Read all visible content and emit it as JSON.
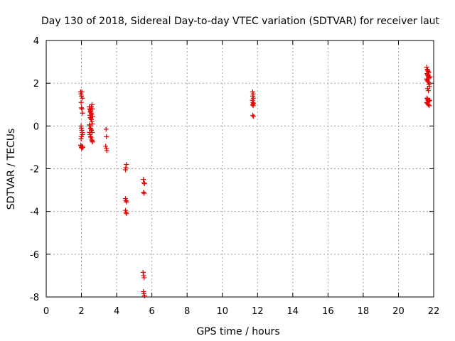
{
  "chart_data": {
    "type": "scatter",
    "title": "Day 130 of 2018, Sidereal Day-to-day VTEC variation (SDTVAR) for receiver laut",
    "xlabel": "GPS time / hours",
    "ylabel": "SDTVAR / TECUs",
    "xlim": [
      0,
      22
    ],
    "ylim": [
      -8,
      4
    ],
    "xticks": [
      0,
      2,
      4,
      6,
      8,
      10,
      12,
      14,
      16,
      18,
      20,
      22
    ],
    "yticks": [
      -8,
      -6,
      -4,
      -2,
      0,
      2,
      4
    ],
    "xtick_labels": [
      "0",
      "2",
      "4",
      "6",
      "8",
      "10",
      "12",
      "14",
      "16",
      "18",
      "20",
      "22"
    ],
    "ytick_labels": [
      "-8",
      "-6",
      "-4",
      "-2",
      "0",
      "2",
      "4"
    ],
    "grid": true,
    "marker": "+",
    "color": "#e00000",
    "series": [
      {
        "name": "SDTVAR",
        "points": [
          [
            1.95,
            1.6
          ],
          [
            1.97,
            1.5
          ],
          [
            2.0,
            1.4
          ],
          [
            2.02,
            1.6
          ],
          [
            2.05,
            1.3
          ],
          [
            1.98,
            1.1
          ],
          [
            2.0,
            0.85
          ],
          [
            2.03,
            0.8
          ],
          [
            2.06,
            0.6
          ],
          [
            1.98,
            0.0
          ],
          [
            2.0,
            -0.1
          ],
          [
            2.02,
            -0.2
          ],
          [
            2.04,
            -0.3
          ],
          [
            2.06,
            -0.4
          ],
          [
            2.0,
            -0.5
          ],
          [
            1.98,
            -0.6
          ],
          [
            1.96,
            -0.9
          ],
          [
            1.98,
            -0.95
          ],
          [
            2.0,
            -1.0
          ],
          [
            2.02,
            -1.05
          ],
          [
            2.05,
            -0.95
          ],
          [
            2.07,
            -1.0
          ],
          [
            2.45,
            0.9
          ],
          [
            2.47,
            0.8
          ],
          [
            2.5,
            0.75
          ],
          [
            2.52,
            0.7
          ],
          [
            2.55,
            0.6
          ],
          [
            2.58,
            0.55
          ],
          [
            2.6,
            1.0
          ],
          [
            2.62,
            0.8
          ],
          [
            2.48,
            0.5
          ],
          [
            2.5,
            0.4
          ],
          [
            2.53,
            0.35
          ],
          [
            2.56,
            0.3
          ],
          [
            2.59,
            0.2
          ],
          [
            2.62,
            0.1
          ],
          [
            2.45,
            0.05
          ],
          [
            2.48,
            0.0
          ],
          [
            2.51,
            -0.1
          ],
          [
            2.54,
            -0.15
          ],
          [
            2.57,
            -0.2
          ],
          [
            2.6,
            -0.3
          ],
          [
            2.46,
            -0.3
          ],
          [
            2.49,
            -0.4
          ],
          [
            2.52,
            -0.5
          ],
          [
            2.55,
            -0.55
          ],
          [
            2.58,
            -0.65
          ],
          [
            2.61,
            -0.7
          ],
          [
            2.63,
            -0.75
          ],
          [
            2.5,
            0.65
          ],
          [
            2.56,
            0.9
          ],
          [
            2.64,
            0.45
          ],
          [
            3.4,
            -0.15
          ],
          [
            3.42,
            -0.5
          ],
          [
            3.38,
            -0.95
          ],
          [
            3.41,
            -1.05
          ],
          [
            3.44,
            -1.15
          ],
          [
            4.55,
            -1.8
          ],
          [
            4.52,
            -1.95
          ],
          [
            4.5,
            -2.05
          ],
          [
            4.5,
            -3.4
          ],
          [
            4.53,
            -3.5
          ],
          [
            4.56,
            -3.55
          ],
          [
            4.5,
            -3.95
          ],
          [
            4.53,
            -4.05
          ],
          [
            4.56,
            -4.1
          ],
          [
            5.52,
            -2.5
          ],
          [
            5.55,
            -2.65
          ],
          [
            5.58,
            -2.7
          ],
          [
            5.53,
            -3.1
          ],
          [
            5.56,
            -3.15
          ],
          [
            5.5,
            -6.85
          ],
          [
            5.53,
            -7.0
          ],
          [
            5.56,
            -7.1
          ],
          [
            5.52,
            -7.75
          ],
          [
            5.55,
            -7.85
          ],
          [
            5.58,
            -7.95
          ],
          [
            11.72,
            1.6
          ],
          [
            11.75,
            1.5
          ],
          [
            11.73,
            1.4
          ],
          [
            11.76,
            1.3
          ],
          [
            11.71,
            1.2
          ],
          [
            11.74,
            1.1
          ],
          [
            11.77,
            1.05
          ],
          [
            11.72,
            1.0
          ],
          [
            11.75,
            0.95
          ],
          [
            11.73,
            0.5
          ],
          [
            11.76,
            0.45
          ],
          [
            21.6,
            2.75
          ],
          [
            21.63,
            2.65
          ],
          [
            21.66,
            2.6
          ],
          [
            21.69,
            2.55
          ],
          [
            21.72,
            2.5
          ],
          [
            21.62,
            2.45
          ],
          [
            21.65,
            2.4
          ],
          [
            21.68,
            2.35
          ],
          [
            21.71,
            2.3
          ],
          [
            21.74,
            2.25
          ],
          [
            21.6,
            2.2
          ],
          [
            21.63,
            2.15
          ],
          [
            21.66,
            2.1
          ],
          [
            21.7,
            2.05
          ],
          [
            21.73,
            1.95
          ],
          [
            21.76,
            1.85
          ],
          [
            21.65,
            1.75
          ],
          [
            21.7,
            1.65
          ],
          [
            21.62,
            1.3
          ],
          [
            21.65,
            1.25
          ],
          [
            21.68,
            1.2
          ],
          [
            21.72,
            1.15
          ],
          [
            21.6,
            1.1
          ],
          [
            21.64,
            1.05
          ],
          [
            21.7,
            1.0
          ],
          [
            21.75,
            0.95
          ],
          [
            21.78,
            1.2
          ],
          [
            21.8,
            2.3
          ]
        ]
      }
    ]
  }
}
